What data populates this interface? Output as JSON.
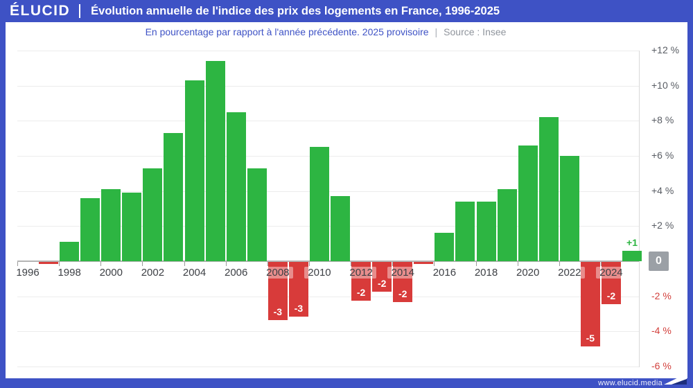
{
  "header": {
    "logo": "ÉLUCID",
    "title": "Évolution annuelle de l'indice des prix des logements en France, 1996-2025"
  },
  "subtitle": {
    "text": "En pourcentage par rapport à l'année précédente. 2025 provisoire",
    "separator": "|",
    "source": "Source : Insee"
  },
  "footer": {
    "url": "www.elucid.media"
  },
  "colors": {
    "brand_blue": "#3e52c5",
    "positive_green": "#2db542",
    "negative_red": "#d83b3a",
    "axis_gray": "#585c63",
    "axis_red": "#d2403c",
    "zero_box_gray": "#9ba0a6"
  },
  "chart_data": {
    "type": "bar",
    "title": "Évolution annuelle de l'indice des prix des logements en France, 1996-2025",
    "subtitle": "En pourcentage par rapport à l'année précédente. 2025 provisoire",
    "source": "Source : Insee",
    "unit": "%",
    "ylim": [
      -6,
      12
    ],
    "grid": true,
    "legend": "none",
    "years": [
      1996,
      1997,
      1998,
      1999,
      2000,
      2001,
      2002,
      2003,
      2004,
      2005,
      2006,
      2007,
      2008,
      2009,
      2010,
      2011,
      2012,
      2013,
      2014,
      2015,
      2016,
      2017,
      2018,
      2019,
      2020,
      2021,
      2022,
      2023,
      2024,
      2025
    ],
    "values": [
      0,
      -0.1,
      1.1,
      3.6,
      4.1,
      3.9,
      5.3,
      7.3,
      10.3,
      11.4,
      8.5,
      5.3,
      -3.3,
      -3.1,
      6.5,
      3.7,
      -2.2,
      -1.7,
      -2.3,
      -0.1,
      1.6,
      3.4,
      3.4,
      4.1,
      6.6,
      8.2,
      6.0,
      -4.8,
      -2.4,
      0.6
    ],
    "bar_labels": [
      "",
      "",
      "",
      "",
      "",
      "",
      "",
      "",
      "",
      "",
      "",
      "",
      "-3",
      "-3",
      "",
      "",
      "-2",
      "-2",
      "-2",
      "",
      "",
      "",
      "",
      "",
      "",
      "",
      "",
      "-5",
      "-2",
      "+1"
    ],
    "y_ticks": [
      {
        "value": 12,
        "label": "+12 %"
      },
      {
        "value": 10,
        "label": "+10 %"
      },
      {
        "value": 8,
        "label": "+8 %"
      },
      {
        "value": 6,
        "label": "+6 %"
      },
      {
        "value": 4,
        "label": "+4 %"
      },
      {
        "value": 2,
        "label": "+2 %"
      },
      {
        "value": 0,
        "label": "0",
        "boxed": true
      },
      {
        "value": -2,
        "label": "-2 %"
      },
      {
        "value": -4,
        "label": "-4 %"
      },
      {
        "value": -6,
        "label": "-6 %"
      }
    ],
    "x_tick_years": [
      1996,
      1998,
      2000,
      2002,
      2004,
      2006,
      2008,
      2010,
      2012,
      2014,
      2016,
      2018,
      2020,
      2022,
      2024
    ]
  }
}
